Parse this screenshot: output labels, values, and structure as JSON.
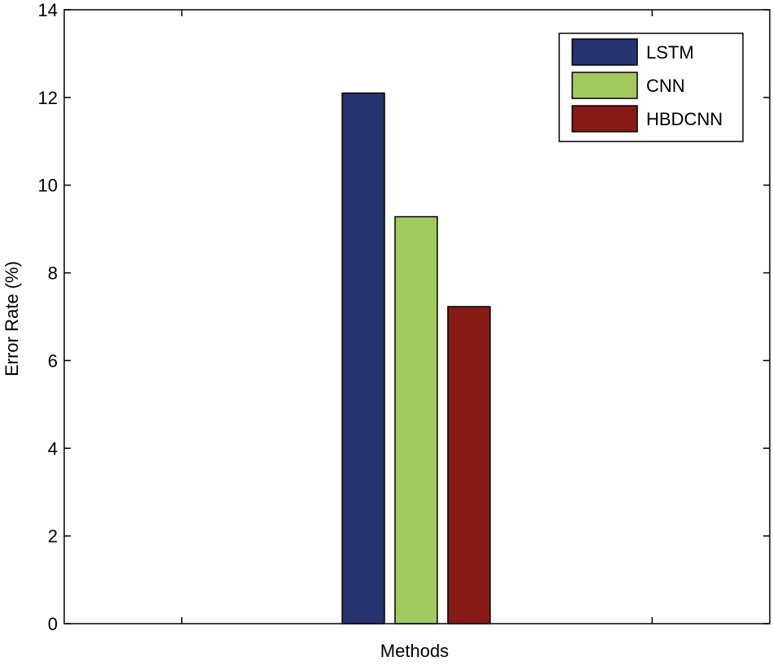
{
  "chart_data": {
    "type": "bar",
    "title": "",
    "xlabel": "Methods",
    "ylabel": "Error Rate (%)",
    "ylim": [
      0,
      14
    ],
    "yticks": [
      "0",
      "2",
      "4",
      "6",
      "8",
      "10",
      "12",
      "14"
    ],
    "categories": [
      ""
    ],
    "grid": false,
    "legend_position": "top-right",
    "series": [
      {
        "name": "LSTM",
        "values": [
          12.1
        ],
        "color": "#283270"
      },
      {
        "name": "CNN",
        "values": [
          9.28
        ],
        "color": "#a2c95e"
      },
      {
        "name": "HBDCNN",
        "values": [
          7.23
        ],
        "color": "#871a14"
      }
    ]
  }
}
